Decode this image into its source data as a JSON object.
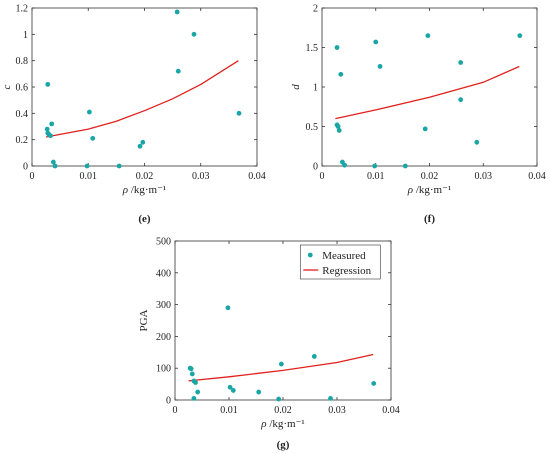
{
  "colors": {
    "measured": "#1aa6a6",
    "regression": "#e0211d",
    "axis": "#333333"
  },
  "chart_data": [
    {
      "id": "e",
      "type": "scatter",
      "panel_label": "(e)",
      "xlabel_var": "ρ",
      "xlabel_unit": " /kg·m⁻¹",
      "ylabel": "c",
      "xlim": [
        0,
        0.04
      ],
      "ylim": [
        0,
        1.2
      ],
      "xticks": [
        0,
        0.01,
        0.02,
        0.03,
        0.04
      ],
      "xtick_labels": [
        "0",
        "0.01",
        "0.02",
        "0.03",
        "0.04"
      ],
      "yticks": [
        0,
        0.2,
        0.4,
        0.6,
        0.8,
        1,
        1.2
      ],
      "ytick_labels": [
        "0",
        "0.2",
        "0.4",
        "0.6",
        "0.8",
        "1",
        "1.2"
      ],
      "measured": [
        [
          0.0028,
          0.62
        ],
        [
          0.0027,
          0.28
        ],
        [
          0.0028,
          0.25
        ],
        [
          0.003,
          0.24
        ],
        [
          0.0033,
          0.23
        ],
        [
          0.0035,
          0.32
        ],
        [
          0.0038,
          0.03
        ],
        [
          0.0041,
          0.0
        ],
        [
          0.0098,
          0.0
        ],
        [
          0.0102,
          0.41
        ],
        [
          0.0108,
          0.21
        ],
        [
          0.0155,
          0.0
        ],
        [
          0.0192,
          0.15
        ],
        [
          0.0197,
          0.18
        ],
        [
          0.0258,
          1.17
        ],
        [
          0.026,
          0.72
        ],
        [
          0.0288,
          1.0
        ],
        [
          0.0368,
          0.4
        ]
      ],
      "regression": [
        [
          0.0025,
          0.22
        ],
        [
          0.005,
          0.24
        ],
        [
          0.01,
          0.28
        ],
        [
          0.015,
          0.34
        ],
        [
          0.02,
          0.42
        ],
        [
          0.025,
          0.51
        ],
        [
          0.03,
          0.62
        ],
        [
          0.0367,
          0.8
        ]
      ]
    },
    {
      "id": "f",
      "type": "scatter",
      "panel_label": "(f)",
      "xlabel_var": "ρ",
      "xlabel_unit": " /kg·m⁻¹",
      "ylabel": "d",
      "xlim": [
        0,
        0.04
      ],
      "ylim": [
        0,
        2
      ],
      "xticks": [
        0,
        0.01,
        0.02,
        0.03,
        0.04
      ],
      "xtick_labels": [
        "0",
        "0.01",
        "0.02",
        "0.03",
        "0.04"
      ],
      "yticks": [
        0,
        0.5,
        1,
        1.5,
        2
      ],
      "ytick_labels": [
        "0",
        "0.5",
        "1",
        "1.5",
        "2"
      ],
      "measured": [
        [
          0.0028,
          1.5
        ],
        [
          0.0028,
          0.52
        ],
        [
          0.003,
          0.5
        ],
        [
          0.0032,
          0.45
        ],
        [
          0.0035,
          1.16
        ],
        [
          0.0038,
          0.05
        ],
        [
          0.0042,
          0.01
        ],
        [
          0.0098,
          0.0
        ],
        [
          0.01,
          1.57
        ],
        [
          0.0108,
          1.26
        ],
        [
          0.0155,
          0.0
        ],
        [
          0.0192,
          0.47
        ],
        [
          0.0197,
          1.65
        ],
        [
          0.0258,
          1.31
        ],
        [
          0.0258,
          0.84
        ],
        [
          0.0288,
          0.3
        ],
        [
          0.0368,
          1.65
        ]
      ],
      "regression": [
        [
          0.0025,
          0.6
        ],
        [
          0.01,
          0.71
        ],
        [
          0.02,
          0.87
        ],
        [
          0.03,
          1.06
        ],
        [
          0.0367,
          1.26
        ]
      ]
    },
    {
      "id": "g",
      "type": "scatter",
      "panel_label": "(g)",
      "xlabel_var": "ρ",
      "xlabel_unit": " /kg·m⁻¹",
      "ylabel": "PGA",
      "xlim": [
        0,
        0.04
      ],
      "ylim": [
        0,
        500
      ],
      "xticks": [
        0,
        0.01,
        0.02,
        0.03,
        0.04
      ],
      "xtick_labels": [
        "0",
        "0.01",
        "0.02",
        "0.03",
        "0.04"
      ],
      "yticks": [
        0,
        100,
        200,
        300,
        400,
        500
      ],
      "ytick_labels": [
        "0",
        "100",
        "200",
        "300",
        "400",
        "500"
      ],
      "legend": {
        "position": "top-right",
        "measured_label": "Measured",
        "regression_label": "Regression"
      },
      "measured": [
        [
          0.0028,
          100
        ],
        [
          0.003,
          98
        ],
        [
          0.0032,
          82
        ],
        [
          0.0035,
          60
        ],
        [
          0.0035,
          5
        ],
        [
          0.0038,
          55
        ],
        [
          0.0042,
          25
        ],
        [
          0.0098,
          290
        ],
        [
          0.0102,
          40
        ],
        [
          0.0108,
          30
        ],
        [
          0.0155,
          25
        ],
        [
          0.0192,
          3
        ],
        [
          0.0197,
          113
        ],
        [
          0.0258,
          137
        ],
        [
          0.0288,
          5
        ],
        [
          0.0368,
          52
        ]
      ],
      "regression": [
        [
          0.0025,
          60
        ],
        [
          0.01,
          73
        ],
        [
          0.02,
          93
        ],
        [
          0.03,
          118
        ],
        [
          0.0367,
          143
        ]
      ]
    }
  ]
}
